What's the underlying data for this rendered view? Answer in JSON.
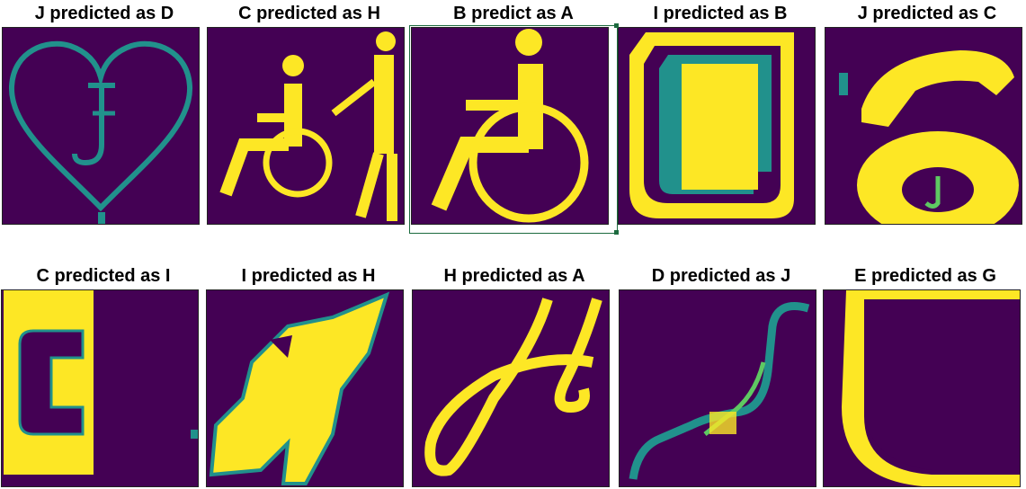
{
  "colors": {
    "background": "#440154",
    "foreground": "#fde725",
    "mid": "#21918c",
    "mid_light": "#5ec962",
    "dark_mid": "#3b528b"
  },
  "panels": [
    {
      "title": "J predicted as D",
      "icon": "heart-with-letter-J"
    },
    {
      "title": "C predicted as H",
      "icon": "wheelchair-with-helper"
    },
    {
      "title": "B predict as A",
      "icon": "wheelchair"
    },
    {
      "title": "I predicted as B",
      "icon": "frame-shape"
    },
    {
      "title": "J predicted as C",
      "icon": "telephone-with-letter-J"
    },
    {
      "title": "C predicted as I",
      "icon": "letter-C-block"
    },
    {
      "title": "I predicted as H",
      "icon": "blob-shape"
    },
    {
      "title": "H predicted as A",
      "icon": "script-letter-H"
    },
    {
      "title": "D predicted as J",
      "icon": "wavy-line"
    },
    {
      "title": "E predicted as G",
      "icon": "euro-like-shape"
    }
  ]
}
